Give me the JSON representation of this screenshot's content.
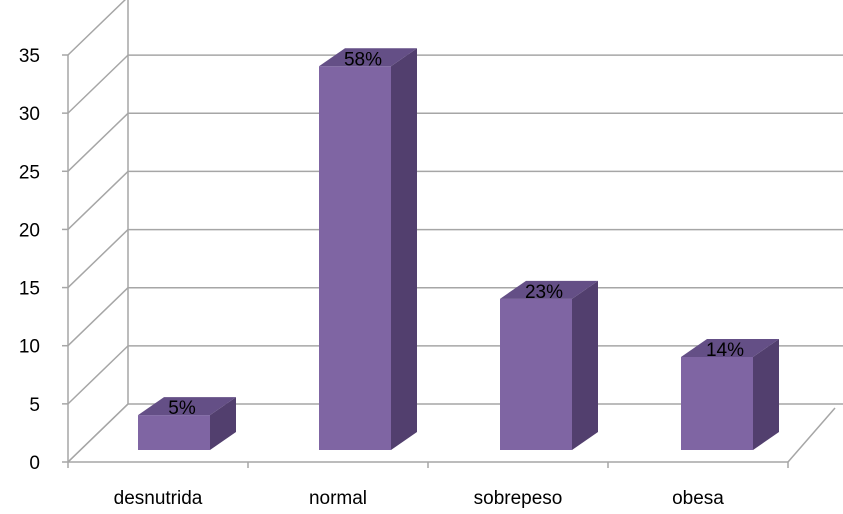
{
  "chart_data": {
    "type": "bar",
    "categories": [
      "desnutrida",
      "normal",
      "sobrepeso",
      "obesa"
    ],
    "values": [
      3,
      33,
      13,
      8
    ],
    "data_labels": [
      "5%",
      "58%",
      "23%",
      "14%"
    ],
    "yticks": [
      0,
      5,
      10,
      15,
      20,
      25,
      30,
      35
    ],
    "ylim": [
      0,
      35
    ],
    "grid": true,
    "legend": "none",
    "title": "",
    "xlabel": "",
    "ylabel": "",
    "colors": {
      "bar_front": "#7F65A3",
      "bar_side": "#523F6E",
      "bar_top": "#644F86",
      "grid": "#A6A6A6",
      "text": "#000000"
    }
  }
}
